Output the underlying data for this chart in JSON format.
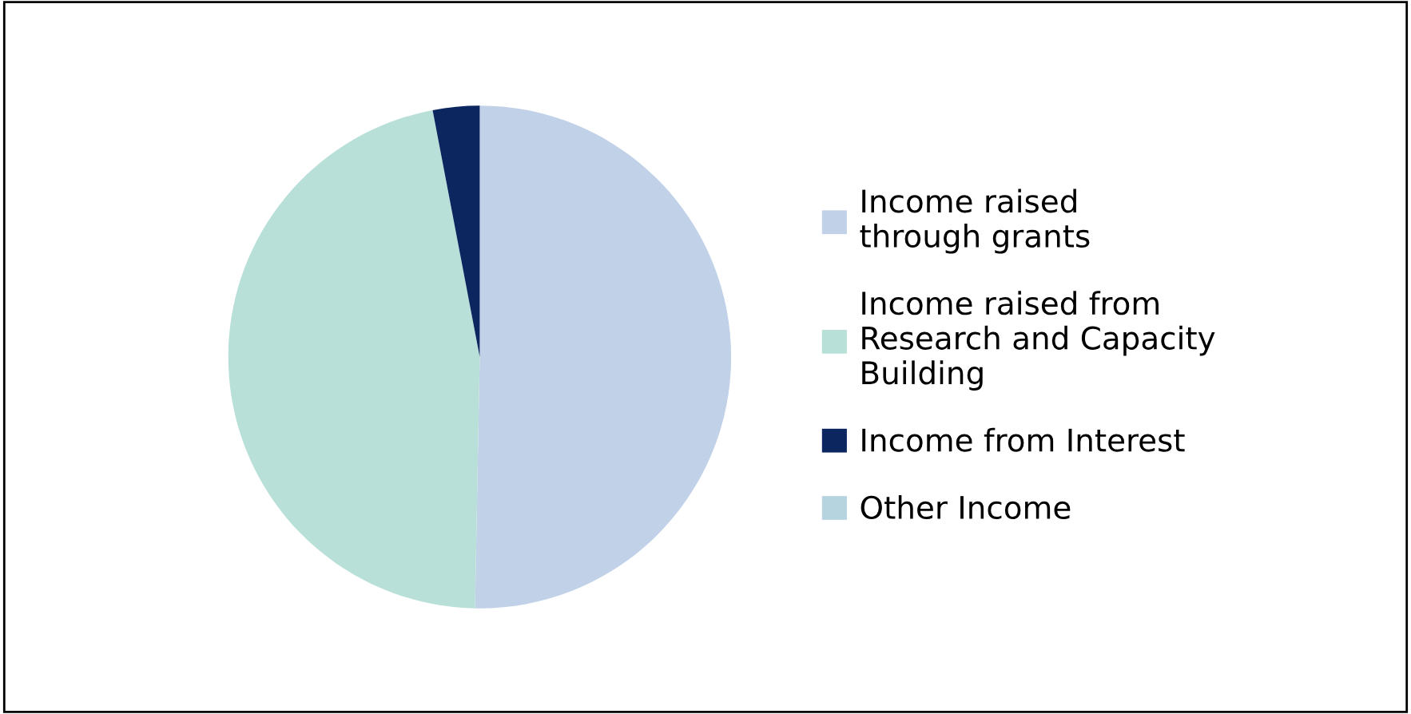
{
  "chart_data": {
    "type": "pie",
    "categories": [
      "Income raised\nthrough grants",
      "Income raised from\nResearch and Capacity\nBuilding",
      "Income from Interest",
      "Other Income"
    ],
    "values": [
      50.3,
      46.7,
      3.0,
      0
    ],
    "colors": [
      "#c0d1e8",
      "#b9e0d8",
      "#0c2660",
      "#b5d4df"
    ],
    "legend": "right"
  }
}
